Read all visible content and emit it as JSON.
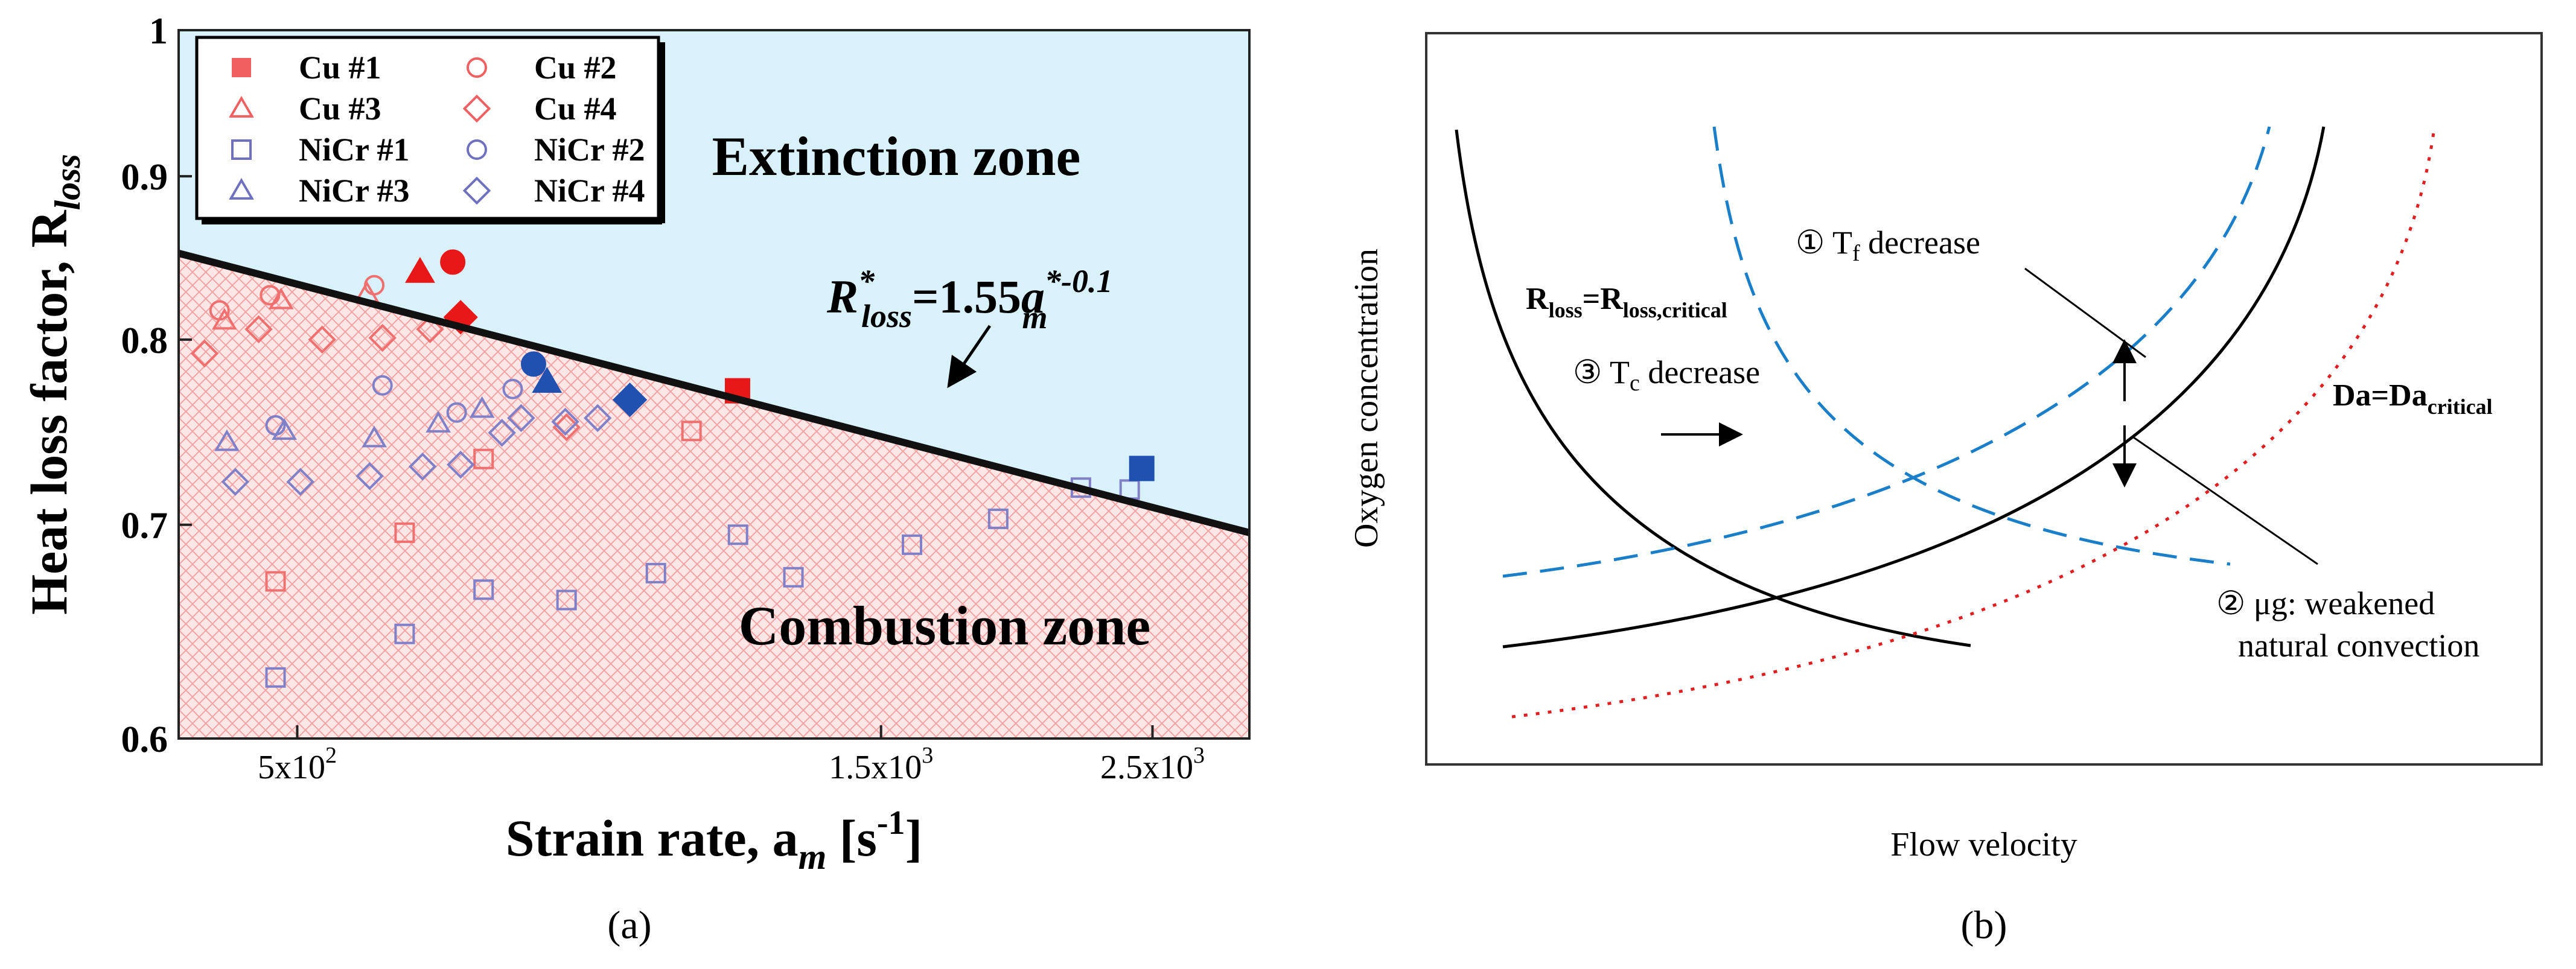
{
  "chart_data": [
    {
      "type": "scatter",
      "panel_label": "(a)",
      "xlabel": "Strain rate, a",
      "xlabel_sub": "m",
      "xlabel_unit_open": " [s",
      "xlabel_unit_exp": "-1",
      "xlabel_unit_close": "]",
      "ylabel": "Heat loss factor, R",
      "ylabel_sub": "loss",
      "xscale": "log",
      "yscale": "log",
      "xlim": [
        400,
        3000
      ],
      "ylim": [
        0.6,
        1.0
      ],
      "x_ticks": [
        {
          "value": 500,
          "label": "5x10",
          "exp": "2"
        },
        {
          "value": 1500,
          "label": "1.5x10",
          "exp": "3"
        },
        {
          "value": 2500,
          "label": "2.5x10",
          "exp": "3"
        }
      ],
      "y_ticks": [
        {
          "value": 0.6,
          "label": "0.6"
        },
        {
          "value": 0.7,
          "label": "0.7"
        },
        {
          "value": 0.8,
          "label": "0.8"
        },
        {
          "value": 0.9,
          "label": "0.9"
        },
        {
          "value": 1.0,
          "label": "1"
        }
      ],
      "zones": {
        "upper": "Extinction zone",
        "lower": "Combustion zone",
        "upper_color": "#d9f1fa",
        "lower_color": "#fde6e6"
      },
      "fit": {
        "coefficient": 1.55,
        "exponent": -0.1,
        "label_main": "R",
        "label_sup": "*",
        "label_sub": "loss",
        "label_eq": "=1.55",
        "label_var": "a",
        "label_var_sup": "*-0.1",
        "label_var_sub": "m"
      },
      "legend": {
        "position": "top-left",
        "entries": [
          {
            "name": "Cu #1",
            "marker": "square",
            "filled": true,
            "color": "#f06060"
          },
          {
            "name": "Cu #2",
            "marker": "circle",
            "filled": false,
            "color": "#f06060"
          },
          {
            "name": "Cu #3",
            "marker": "triangle",
            "filled": false,
            "color": "#f06060"
          },
          {
            "name": "Cu #4",
            "marker": "diamond",
            "filled": false,
            "color": "#f06060"
          },
          {
            "name": "NiCr #1",
            "marker": "square",
            "filled": false,
            "color": "#7070c0"
          },
          {
            "name": "NiCr #2",
            "marker": "circle",
            "filled": false,
            "color": "#7070c0"
          },
          {
            "name": "NiCr #3",
            "marker": "triangle",
            "filled": false,
            "color": "#7070c0"
          },
          {
            "name": "NiCr #4",
            "marker": "diamond",
            "filled": false,
            "color": "#7070c0"
          }
        ]
      },
      "series": [
        {
          "name": "Cu #1",
          "marker": "square",
          "color": "#f07070",
          "points": [
            [
              480,
              0.672
            ],
            [
              612,
              0.696
            ],
            [
              710,
              0.734
            ],
            [
              1050,
              0.749
            ]
          ]
        },
        {
          "name": "Cu #2",
          "marker": "circle",
          "color": "#f07070",
          "points": [
            [
              432,
              0.817
            ],
            [
              475,
              0.826
            ],
            [
              578,
              0.832
            ]
          ]
        },
        {
          "name": "Cu #3",
          "marker": "triangle",
          "color": "#f07070",
          "points": [
            [
              436,
              0.811
            ],
            [
              485,
              0.823
            ],
            [
              570,
              0.827
            ]
          ]
        },
        {
          "name": "Cu #4",
          "marker": "diamond",
          "color": "#f07070",
          "points": [
            [
              420,
              0.792
            ],
            [
              465,
              0.806
            ],
            [
              524,
              0.8
            ],
            [
              587,
              0.801
            ],
            [
              642,
              0.806
            ],
            [
              830,
              0.751
            ]
          ]
        },
        {
          "name": "NiCr #1",
          "marker": "square",
          "color": "#8080c8",
          "points": [
            [
              480,
              0.627
            ],
            [
              612,
              0.647
            ],
            [
              710,
              0.668
            ],
            [
              830,
              0.663
            ],
            [
              982,
              0.676
            ],
            [
              1146,
              0.695
            ],
            [
              1272,
              0.674
            ],
            [
              1590,
              0.69
            ],
            [
              1870,
              0.703
            ],
            [
              2185,
              0.719
            ],
            [
              2395,
              0.718
            ]
          ]
        },
        {
          "name": "NiCr #2",
          "marker": "circle",
          "color": "#8080c8",
          "points": [
            [
              480,
              0.752
            ],
            [
              587,
              0.774
            ],
            [
              675,
              0.759
            ],
            [
              750,
              0.772
            ]
          ]
        },
        {
          "name": "NiCr #3",
          "marker": "triangle",
          "color": "#8080c8",
          "points": [
            [
              438,
              0.743
            ],
            [
              488,
              0.749
            ],
            [
              578,
              0.745
            ],
            [
              652,
              0.753
            ],
            [
              708,
              0.761
            ]
          ]
        },
        {
          "name": "NiCr #4",
          "marker": "diamond",
          "color": "#8080c8",
          "points": [
            [
              445,
              0.722
            ],
            [
              503,
              0.722
            ],
            [
              573,
              0.725
            ],
            [
              633,
              0.73
            ],
            [
              680,
              0.731
            ],
            [
              735,
              0.748
            ],
            [
              762,
              0.756
            ],
            [
              828,
              0.754
            ],
            [
              880,
              0.756
            ]
          ]
        },
        {
          "name": "Critical Cu #1",
          "marker": "square",
          "filled": true,
          "color": "#e81818",
          "points": [
            [
              1145,
              0.771
            ]
          ]
        },
        {
          "name": "Critical Cu #2",
          "marker": "circle",
          "filled": true,
          "color": "#e81818",
          "points": [
            [
              670,
              0.846
            ]
          ]
        },
        {
          "name": "Critical Cu #3",
          "marker": "triangle",
          "filled": true,
          "color": "#e81818",
          "points": [
            [
              630,
              0.84
            ]
          ]
        },
        {
          "name": "Critical Cu #4",
          "marker": "diamond",
          "filled": true,
          "color": "#e81818",
          "points": [
            [
              680,
              0.813
            ]
          ]
        },
        {
          "name": "Critical NiCr #1",
          "marker": "square",
          "filled": true,
          "color": "#2050b0",
          "points": [
            [
              2450,
              0.729
            ]
          ]
        },
        {
          "name": "Critical NiCr #2",
          "marker": "circle",
          "filled": true,
          "color": "#2050b0",
          "points": [
            [
              780,
              0.786
            ]
          ]
        },
        {
          "name": "Critical NiCr #3",
          "marker": "triangle",
          "filled": true,
          "color": "#2050b0",
          "points": [
            [
              800,
              0.776
            ]
          ]
        },
        {
          "name": "Critical NiCr #4",
          "marker": "diamond",
          "filled": true,
          "color": "#2050b0",
          "points": [
            [
              935,
              0.766
            ]
          ]
        }
      ]
    },
    {
      "type": "line",
      "panel_label": "(b)",
      "xlabel": "Flow velocity",
      "ylabel": "Oxygen concentration",
      "axis_ticks": "none",
      "curves": [
        {
          "name": "Rloss=Rloss,critical",
          "style": "solid",
          "color": "#000000",
          "kind": "decreasing"
        },
        {
          "name": "Da=Dacritical",
          "style": "solid",
          "color": "#000000",
          "kind": "increasing"
        },
        {
          "name": "Tf decrease (shifted Da)",
          "style": "dashed",
          "color": "#1a7fc8",
          "kind": "increasing"
        },
        {
          "name": "Tc decrease (shifted Rloss)",
          "style": "dashed",
          "color": "#1a7fc8",
          "kind": "decreasing"
        },
        {
          "name": "ug weakened natural convection (shifted Da)",
          "style": "dotted",
          "color": "#e02020",
          "kind": "increasing"
        }
      ],
      "annotations": {
        "rloss_main": "R",
        "rloss_sub1": "loss",
        "rloss_eq": "=R",
        "rloss_sub2": "loss,critical",
        "da_main": "Da=Da",
        "da_sub": "critical",
        "tf_num": "①",
        "tf_pre": " T",
        "tf_sub": "f",
        "tf_post": " decrease",
        "tc_num": "③",
        "tc_pre": " T",
        "tc_sub": "c",
        "tc_post": " decrease",
        "ug_line1": "② μg: weakened",
        "ug_line2": "natural convection"
      }
    }
  ]
}
